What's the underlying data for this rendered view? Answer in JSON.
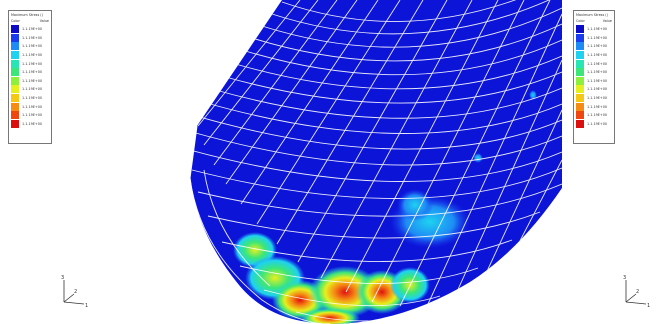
{
  "legend_left": {
    "title": "Maximum Stress ()",
    "col_label": "Color",
    "col_value": "Value",
    "entries": [
      {
        "color": "#0c0cc8",
        "value": "1.1.19E+00"
      },
      {
        "color": "#1a3cf0",
        "value": "1.1.19E+00"
      },
      {
        "color": "#1e8cf5",
        "value": "1.1.19E+00"
      },
      {
        "color": "#1ed2f0",
        "value": "1.1.19E+00"
      },
      {
        "color": "#28e6b4",
        "value": "1.1.19E+00"
      },
      {
        "color": "#3ce678",
        "value": "1.1.19E+00"
      },
      {
        "color": "#8cf03c",
        "value": "1.1.19E+00"
      },
      {
        "color": "#e6f01e",
        "value": "1.1.19E+00"
      },
      {
        "color": "#f5c814",
        "value": "1.1.19E+00"
      },
      {
        "color": "#f58c14",
        "value": "1.1.19E+00"
      },
      {
        "color": "#f0460f",
        "value": "1.1.19E+00"
      },
      {
        "color": "#dc0f0f",
        "value": "1.1.19E+00"
      }
    ]
  },
  "legend_right": {
    "title": "Maximum Stress ()",
    "col_label": "Color",
    "col_value": "Value",
    "entries": [
      {
        "color": "#0c0cc8",
        "value": "1.1.19E+00"
      },
      {
        "color": "#1a3cf0",
        "value": "1.1.19E+00"
      },
      {
        "color": "#1e8cf5",
        "value": "1.1.19E+00"
      },
      {
        "color": "#1ed2f0",
        "value": "1.1.19E+00"
      },
      {
        "color": "#28e6b4",
        "value": "1.1.19E+00"
      },
      {
        "color": "#3ce678",
        "value": "1.1.19E+00"
      },
      {
        "color": "#8cf03c",
        "value": "1.1.19E+00"
      },
      {
        "color": "#e6f01e",
        "value": "1.1.19E+00"
      },
      {
        "color": "#f5c814",
        "value": "1.1.19E+00"
      },
      {
        "color": "#f58c14",
        "value": "1.1.19E+00"
      },
      {
        "color": "#f0460f",
        "value": "1.1.19E+00"
      },
      {
        "color": "#dc0f0f",
        "value": "1.1.19E+00"
      }
    ]
  },
  "triad": {
    "x": "1",
    "y": "2",
    "z": "3"
  },
  "colors": {
    "mesh_body": "#0c14d8",
    "mesh_line": "#ffffff"
  }
}
